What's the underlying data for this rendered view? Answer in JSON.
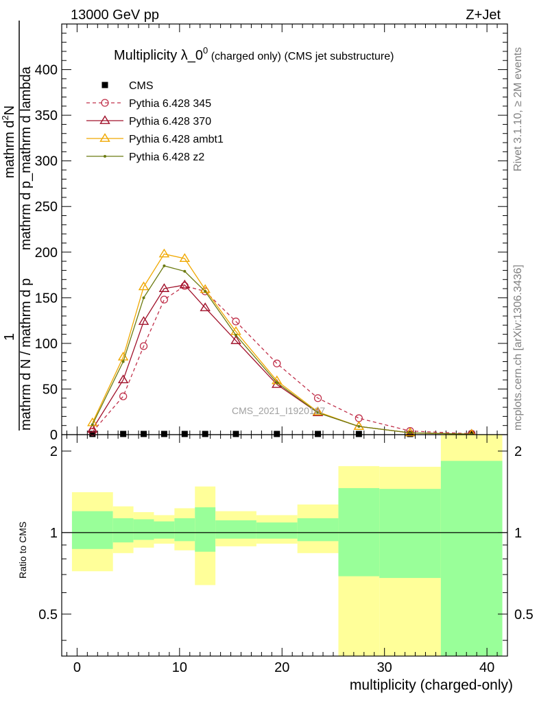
{
  "header": {
    "left": "13000 GeV pp",
    "right": "Z+Jet"
  },
  "main_title": {
    "main": "Multiplicity λ_0",
    "superscript": "0",
    "suffix": " (charged only) (CMS jet substructure)"
  },
  "side_text": {
    "top": "Rivet 3.1.10, ≥ 2M events",
    "bottom": "mcplots.cern.ch [arXiv:1306.3436]"
  },
  "watermark": "CMS_2021_I1920187",
  "ylabel": {
    "numerator": "mathrm d²N",
    "numerator_prefix": "1",
    "numerator_top": "mathrm d",
    "numerator_sup": "2",
    "numerator_N": "N",
    "denominator": "mathrm d N / mathrm d p_mathrm d p_mathrm d lambda",
    "denominator_main": "mathrm d N / mathrm d p",
    "denominator_rest": "mathrm d p_mathrm d lambda"
  },
  "chart_data": [
    {
      "type": "line",
      "title": "Multiplicity λ_0⁰ (charged only) (CMS jet substructure)",
      "xlabel": "multiplicity (charged-only)",
      "xlim": [
        -1.5,
        42
      ],
      "ylim": [
        0,
        450
      ],
      "x_ticks": [
        0,
        10,
        20,
        30,
        40
      ],
      "y_ticks": [
        0,
        50,
        100,
        150,
        200,
        250,
        300,
        350,
        400
      ],
      "legend_position": "top-left",
      "grid": false,
      "series": [
        {
          "name": "CMS",
          "marker": "square",
          "color": "#000000",
          "x": [
            1.5,
            4.5,
            6.5,
            8.5,
            10.5,
            12.5,
            15.5,
            19.5,
            23.5,
            27.5,
            32.5,
            38.5
          ],
          "y": [
            0,
            0,
            0,
            0,
            0,
            0,
            0,
            0,
            0,
            0,
            0,
            0
          ]
        },
        {
          "name": "Pythia 6.428 345",
          "marker": "circle-open",
          "dashed": true,
          "color": "#c0304a",
          "x": [
            1.5,
            4.5,
            6.5,
            8.5,
            10.5,
            12.5,
            15.5,
            19.5,
            23.5,
            27.5,
            32.5,
            38.5
          ],
          "y": [
            3,
            42,
            97,
            148,
            163,
            157,
            124,
            78,
            40,
            18,
            4,
            1
          ]
        },
        {
          "name": "Pythia 6.428 370",
          "marker": "triangle-open",
          "color": "#a0102a",
          "x": [
            1.5,
            4.5,
            6.5,
            8.5,
            10.5,
            12.5,
            15.5,
            19.5,
            23.5,
            27.5,
            32.5,
            38.5
          ],
          "y": [
            6,
            60,
            124,
            160,
            164,
            139,
            103,
            55,
            24,
            9,
            2,
            0.5
          ]
        },
        {
          "name": "Pythia 6.428 ambt1",
          "marker": "triangle-open",
          "color": "#f0a800",
          "x": [
            1.5,
            4.5,
            6.5,
            8.5,
            10.5,
            12.5,
            15.5,
            19.5,
            23.5,
            27.5,
            32.5,
            38.5
          ],
          "y": [
            13,
            85,
            162,
            198,
            193,
            159,
            113,
            59,
            25,
            9,
            2,
            0.5
          ]
        },
        {
          "name": "Pythia 6.428 z2",
          "marker": "dot",
          "color": "#6b7a10",
          "x": [
            1.5,
            4.5,
            6.5,
            8.5,
            10.5,
            12.5,
            15.5,
            19.5,
            23.5,
            27.5,
            32.5,
            38.5
          ],
          "y": [
            11,
            80,
            150,
            185,
            179,
            157,
            109,
            57,
            24,
            9,
            2,
            0.5
          ]
        }
      ]
    },
    {
      "type": "area",
      "ylabel": "Ratio to CMS",
      "xlabel": "multiplicity (charged-only)",
      "xlim": [
        -1.5,
        42
      ],
      "ylim": [
        0.35,
        2.3
      ],
      "y_ticks": [
        0.5,
        1,
        2
      ],
      "log_scale": true,
      "reference_line": 1,
      "bands": {
        "bins": [
          [
            -0.5,
            3.5
          ],
          [
            3.5,
            5.5
          ],
          [
            5.5,
            7.5
          ],
          [
            7.5,
            9.5
          ],
          [
            9.5,
            11.5
          ],
          [
            11.5,
            13.5
          ],
          [
            13.5,
            17.5
          ],
          [
            17.5,
            21.5
          ],
          [
            21.5,
            25.5
          ],
          [
            25.5,
            29.5
          ],
          [
            29.5,
            35.5
          ],
          [
            35.5,
            41.5
          ]
        ],
        "stat_lo": [
          0.87,
          0.92,
          0.94,
          0.95,
          0.93,
          0.85,
          0.95,
          0.95,
          0.93,
          0.69,
          0.68,
          0.3
        ],
        "stat_hi": [
          1.2,
          1.13,
          1.12,
          1.1,
          1.13,
          1.24,
          1.11,
          1.09,
          1.13,
          1.46,
          1.45,
          1.84
        ],
        "total_lo": [
          0.72,
          0.84,
          0.88,
          0.91,
          0.86,
          0.64,
          0.89,
          0.91,
          0.84,
          0.3,
          0.3,
          0.3
        ],
        "total_hi": [
          1.41,
          1.25,
          1.19,
          1.16,
          1.23,
          1.48,
          1.2,
          1.16,
          1.27,
          1.76,
          1.75,
          2.4
        ],
        "stat_color": "#99ff99",
        "total_color": "#ffff99"
      }
    }
  ]
}
